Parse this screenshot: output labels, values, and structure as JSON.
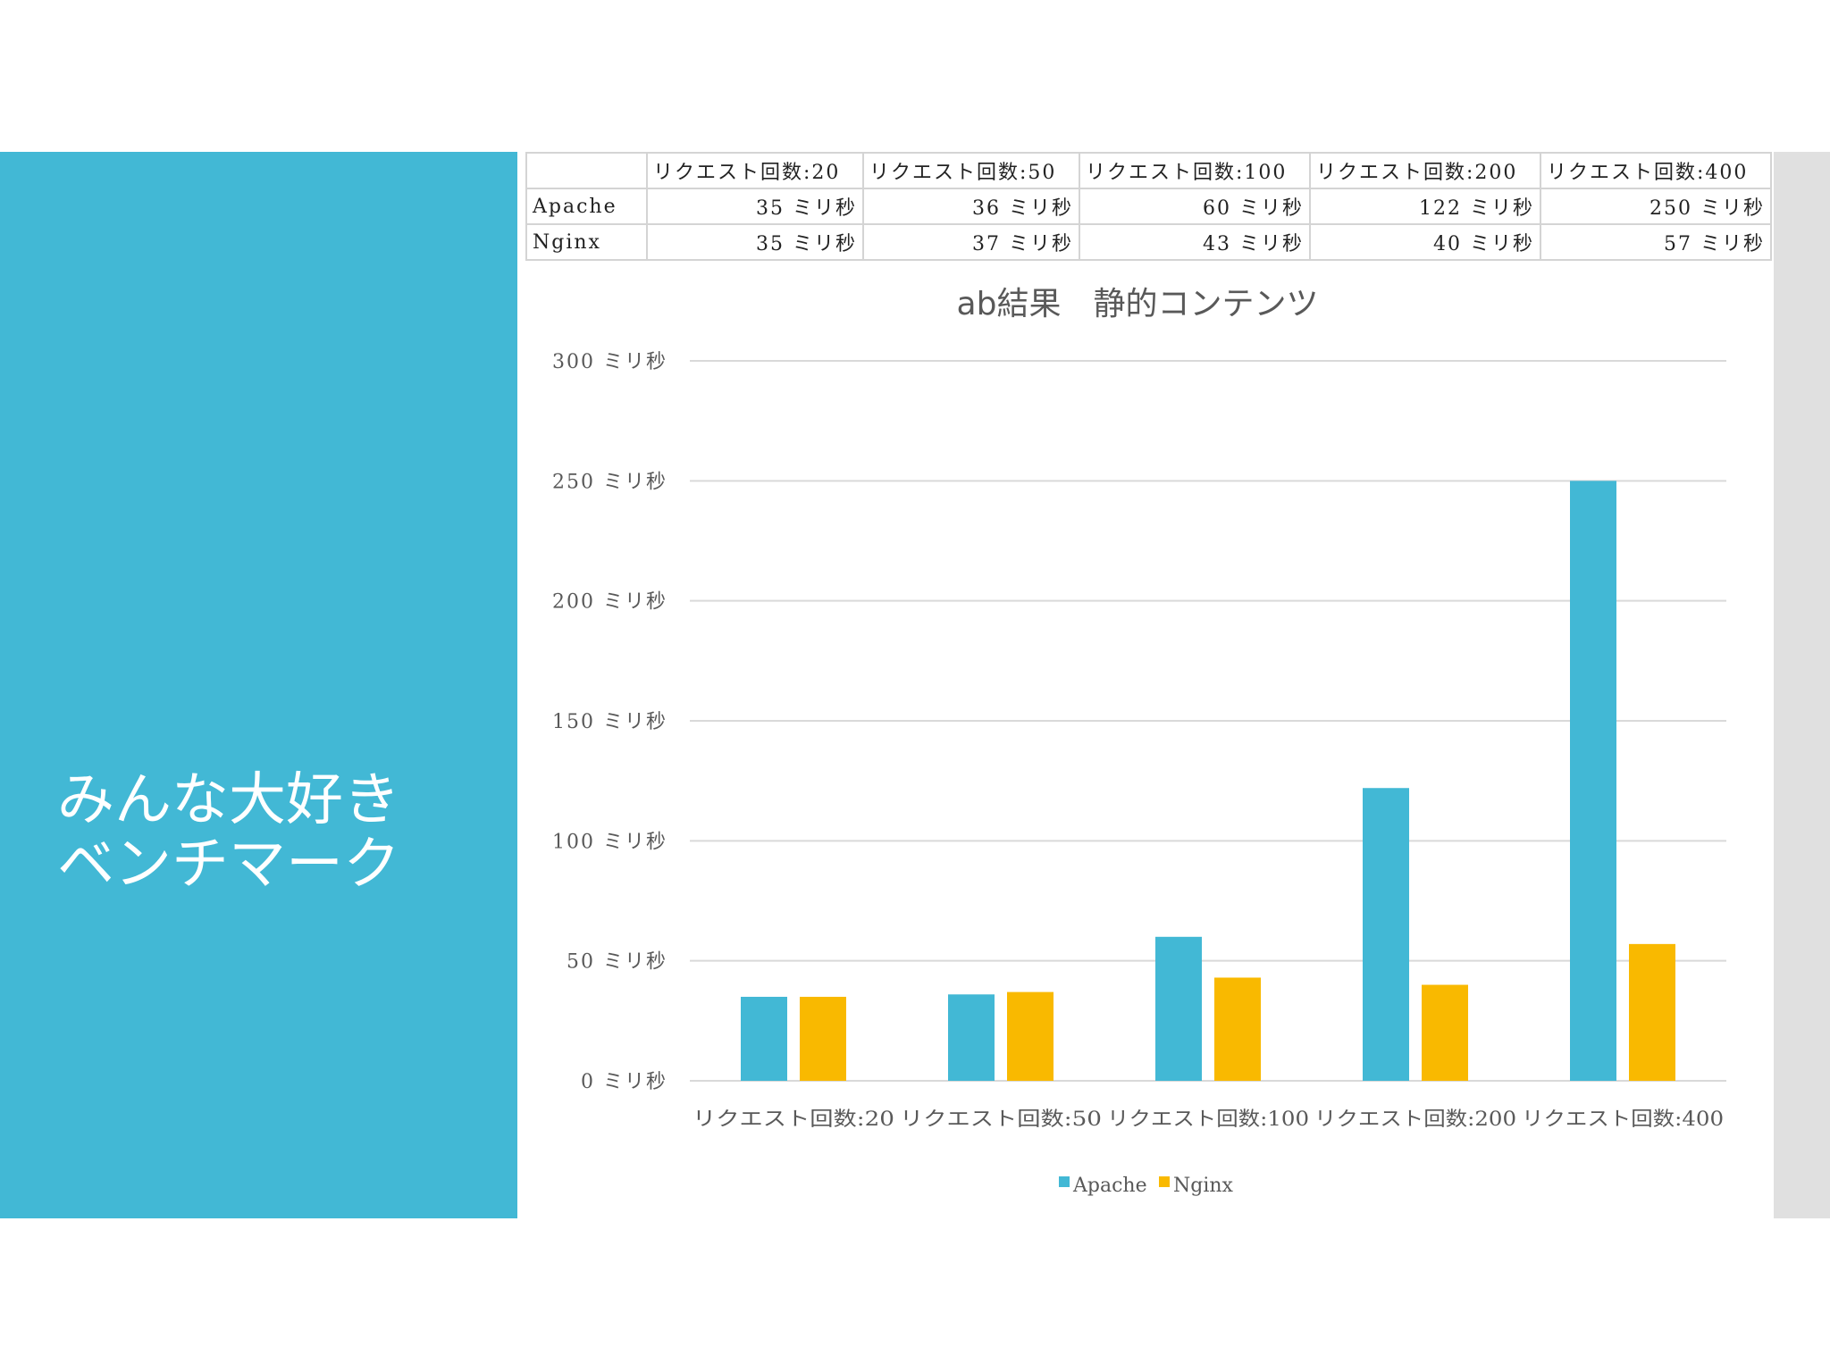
{
  "slide": {
    "title_lines": [
      "みんな大好き",
      "ベンチマーク"
    ]
  },
  "table": {
    "columns": [
      "",
      "リクエスト回数:20",
      "リクエスト回数:50",
      "リクエスト回数:100",
      "リクエスト回数:200",
      "リクエスト回数:400"
    ],
    "rows": [
      {
        "label": "Apache",
        "cells": [
          "35 ミリ秒",
          "36 ミリ秒",
          "60 ミリ秒",
          "122 ミリ秒",
          "250 ミリ秒"
        ]
      },
      {
        "label": "Nginx",
        "cells": [
          "35 ミリ秒",
          "37 ミリ秒",
          "43 ミリ秒",
          "40 ミリ秒",
          "57 ミリ秒"
        ]
      }
    ]
  },
  "chart_data": {
    "type": "bar",
    "title": "ab結果　静的コンテンツ",
    "categories": [
      "リクエスト回数:20",
      "リクエスト回数:50",
      "リクエスト回数:100",
      "リクエスト回数:200",
      "リクエスト回数:400"
    ],
    "series": [
      {
        "name": "Apache",
        "values": [
          35,
          36,
          60,
          122,
          250
        ],
        "color": "#42b8d5"
      },
      {
        "name": "Nginx",
        "values": [
          35,
          37,
          43,
          40,
          57
        ],
        "color": "#f9b900"
      }
    ],
    "ylim": [
      0,
      300
    ],
    "yticks": [
      0,
      50,
      100,
      150,
      200,
      250,
      300
    ],
    "ytick_labels": [
      "0 ミリ秒",
      "50 ミリ秒",
      "100 ミリ秒",
      "150 ミリ秒",
      "200 ミリ秒",
      "250 ミリ秒",
      "300 ミリ秒"
    ],
    "grid": true,
    "legend": "bottom"
  }
}
